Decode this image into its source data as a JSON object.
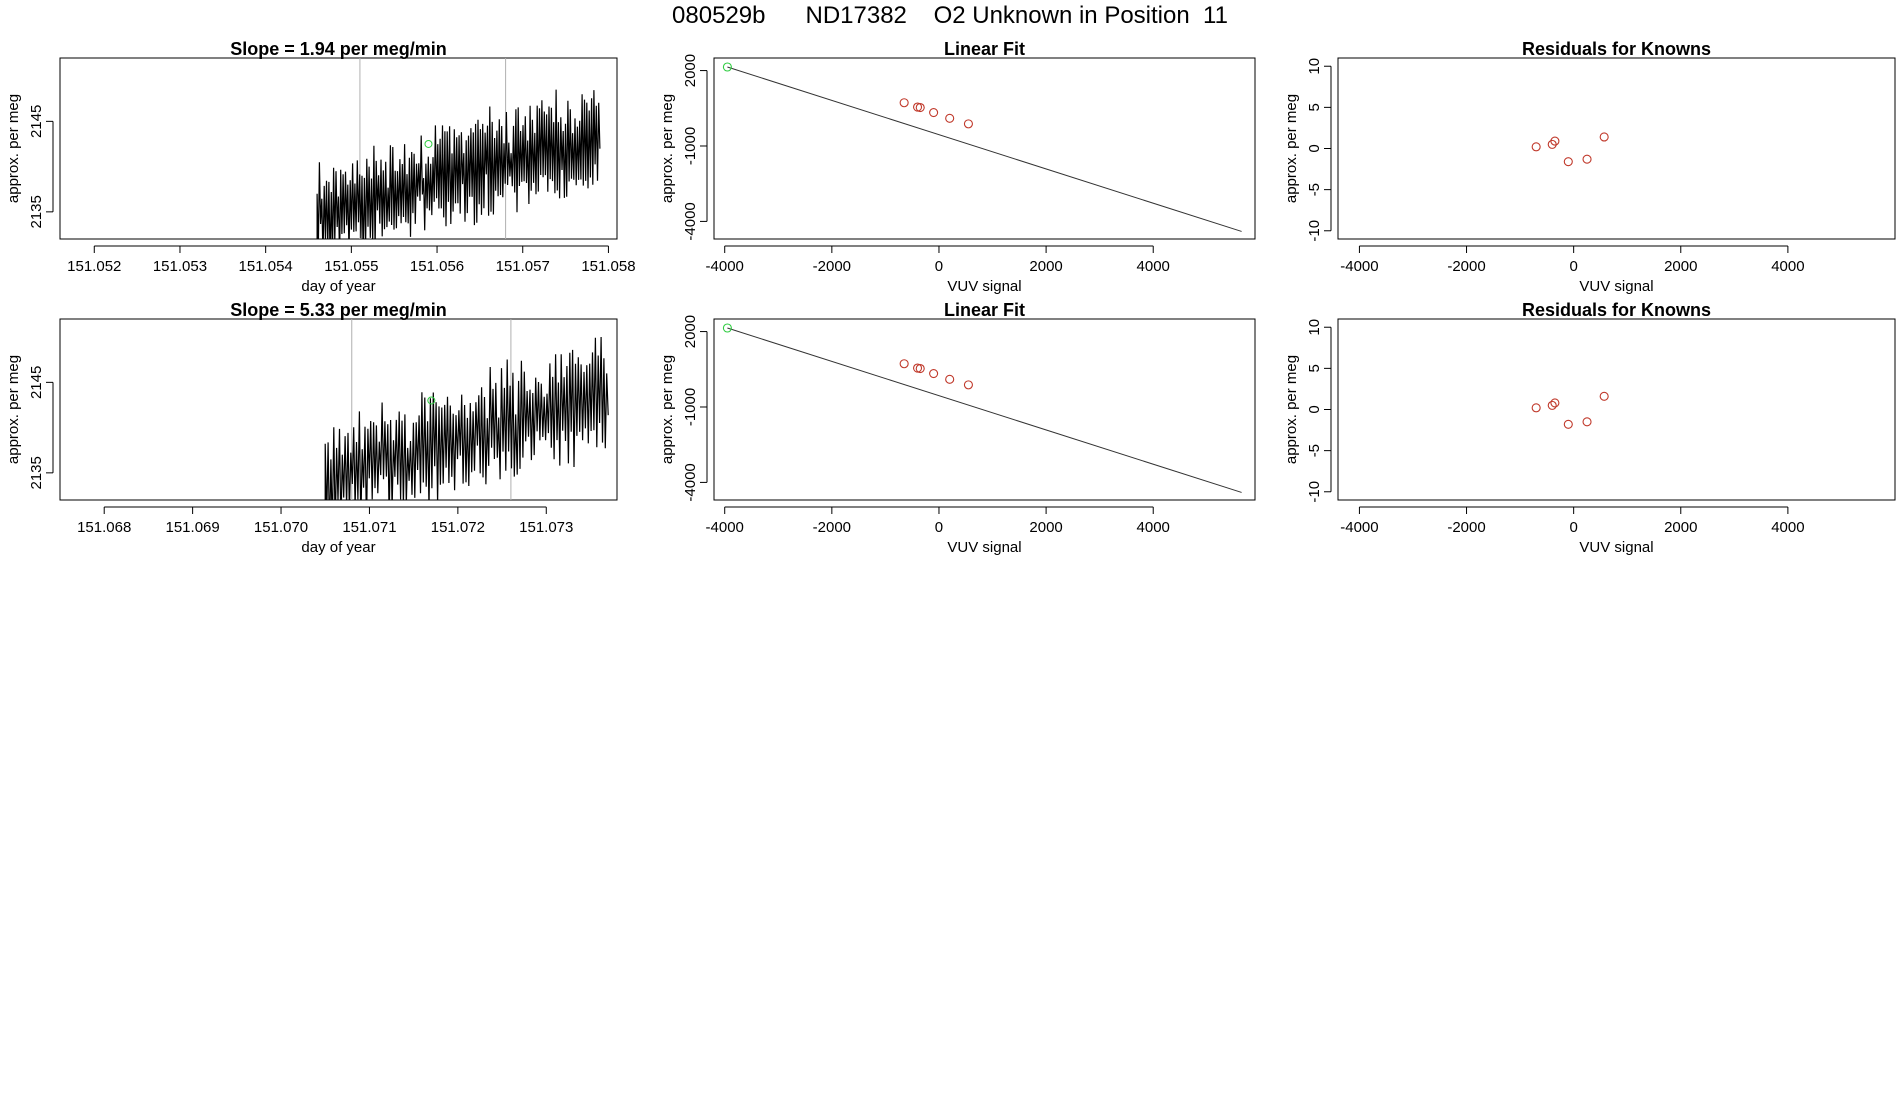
{
  "title": "080529b      ND17382    O2 Unknown in Position  11",
  "colors": {
    "line": "#000000",
    "fit": "#333333",
    "knowns": "#c0392b",
    "unknown": "#2ecc40",
    "guide": "#b0b0b0"
  },
  "chart_data": [
    {
      "type": "line",
      "panel": "timeseries-1",
      "title": "Slope =  1.94  per meg/min",
      "xlabel": "day of year",
      "ylabel": "approx. per meg",
      "xlim": [
        151.0516,
        151.0581
      ],
      "ylim": [
        2132,
        2152
      ],
      "xticks": [
        151.052,
        151.053,
        151.054,
        151.055,
        151.056,
        151.057,
        151.058
      ],
      "xtick_labels": [
        "151.052",
        "151.053",
        "151.054",
        "151.055",
        "151.056",
        "151.057",
        "151.058"
      ],
      "yticks": [
        2135,
        2145
      ],
      "ytick_labels": [
        "2135",
        "2145"
      ],
      "vlines": [
        151.0551,
        151.0568
      ],
      "unknown_mean": {
        "x": 151.0559,
        "y": 2142.5
      },
      "signal": {
        "start": 151.0546,
        "end": 151.0579,
        "n": 240,
        "base_start": 2135,
        "base_end": 2143.5,
        "amp": 4.5,
        "seed": 11
      }
    },
    {
      "type": "scatter",
      "panel": "fit-1",
      "title": "Linear Fit",
      "xlabel": "VUV signal",
      "ylabel": "approx. per meg",
      "xlim": [
        -4200,
        5900
      ],
      "ylim": [
        -4700,
        2500
      ],
      "xticks": [
        -4000,
        -2000,
        0,
        2000,
        4000
      ],
      "xtick_labels": [
        "-4000",
        "-2000",
        "0",
        "2000",
        "4000"
      ],
      "yticks": [
        -4000,
        -1000,
        2000
      ],
      "ytick_labels": [
        "-4000",
        "-1000",
        "2000"
      ],
      "fit_line": [
        [
          -3950,
          2142
        ],
        [
          5650,
          -4400
        ]
      ],
      "knowns": [
        [
          -650,
          720
        ],
        [
          -400,
          550
        ],
        [
          -350,
          530
        ],
        [
          -100,
          330
        ],
        [
          200,
          100
        ],
        [
          550,
          -120
        ]
      ],
      "unknown": [
        [
          -3950,
          2142
        ]
      ]
    },
    {
      "type": "scatter",
      "panel": "residuals-1",
      "title": "Residuals for Knowns",
      "xlabel": "VUV signal",
      "ylabel": "approx. per meg",
      "xlim": [
        -4400,
        6000
      ],
      "ylim": [
        -11,
        11
      ],
      "xticks": [
        -4000,
        -2000,
        0,
        2000,
        4000
      ],
      "xtick_labels": [
        "-4000",
        "-2000",
        "0",
        "2000",
        "4000"
      ],
      "yticks": [
        -10,
        -5,
        0,
        5,
        10
      ],
      "ytick_labels": [
        "-10",
        "-5",
        "0",
        "5",
        "10"
      ],
      "knowns": [
        [
          -700,
          0.2
        ],
        [
          -400,
          0.5
        ],
        [
          -350,
          0.9
        ],
        [
          -100,
          -1.6
        ],
        [
          250,
          -1.3
        ],
        [
          570,
          1.4
        ]
      ]
    },
    {
      "type": "line",
      "panel": "timeseries-2",
      "title": "Slope =  5.33  per meg/min",
      "xlabel": "day of year",
      "ylabel": "approx. per meg",
      "xlim": [
        151.0675,
        151.0738
      ],
      "ylim": [
        2132,
        2152
      ],
      "xticks": [
        151.068,
        151.069,
        151.07,
        151.071,
        151.072,
        151.073
      ],
      "xtick_labels": [
        "151.068",
        "151.069",
        "151.070",
        "151.071",
        "151.072",
        "151.073"
      ],
      "yticks": [
        2135,
        2145
      ],
      "ytick_labels": [
        "2135",
        "2145"
      ],
      "vlines": [
        151.0708,
        151.0726
      ],
      "unknown_mean": {
        "x": 151.0717,
        "y": 2143
      },
      "signal": {
        "start": 151.0705,
        "end": 151.0737,
        "n": 200,
        "base_start": 2134,
        "base_end": 2144,
        "amp": 5,
        "seed": 29
      }
    },
    {
      "type": "scatter",
      "panel": "fit-2",
      "title": "Linear Fit",
      "xlabel": "VUV signal",
      "ylabel": "approx. per meg",
      "xlim": [
        -4200,
        5900
      ],
      "ylim": [
        -4700,
        2500
      ],
      "xticks": [
        -4000,
        -2000,
        0,
        2000,
        4000
      ],
      "xtick_labels": [
        "-4000",
        "-2000",
        "0",
        "2000",
        "4000"
      ],
      "yticks": [
        -4000,
        -1000,
        2000
      ],
      "ytick_labels": [
        "-4000",
        "-1000",
        "2000"
      ],
      "fit_line": [
        [
          -3950,
          2142
        ],
        [
          5650,
          -4400
        ]
      ],
      "knowns": [
        [
          -650,
          720
        ],
        [
          -400,
          550
        ],
        [
          -350,
          530
        ],
        [
          -100,
          330
        ],
        [
          200,
          100
        ],
        [
          550,
          -120
        ]
      ],
      "unknown": [
        [
          -3950,
          2142
        ]
      ]
    },
    {
      "type": "scatter",
      "panel": "residuals-2",
      "title": "Residuals for Knowns",
      "xlabel": "VUV signal",
      "ylabel": "approx. per meg",
      "xlim": [
        -4400,
        6000
      ],
      "ylim": [
        -11,
        11
      ],
      "xticks": [
        -4000,
        -2000,
        0,
        2000,
        4000
      ],
      "xtick_labels": [
        "-4000",
        "-2000",
        "0",
        "2000",
        "4000"
      ],
      "yticks": [
        -10,
        -5,
        0,
        5,
        10
      ],
      "ytick_labels": [
        "-10",
        "-5",
        "0",
        "5",
        "10"
      ],
      "knowns": [
        [
          -700,
          0.2
        ],
        [
          -400,
          0.5
        ],
        [
          -350,
          0.8
        ],
        [
          -100,
          -1.8
        ],
        [
          250,
          -1.5
        ],
        [
          570,
          1.6
        ]
      ]
    }
  ]
}
